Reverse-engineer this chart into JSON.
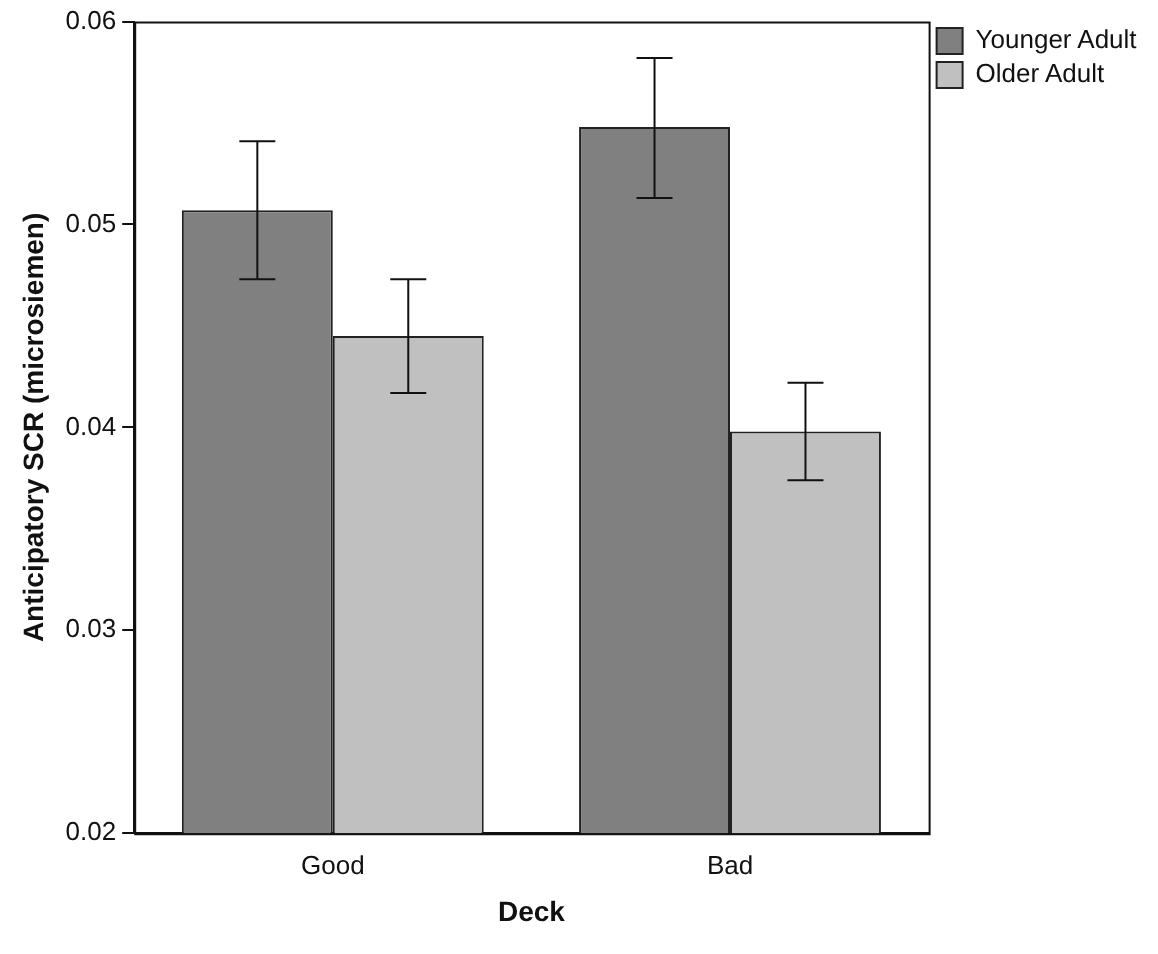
{
  "chart_data": {
    "type": "bar",
    "xlabel": "Deck",
    "ylabel": "Anticipatory SCR (microsiemen)",
    "categories": [
      "Good",
      "Bad"
    ],
    "series": [
      {
        "name": "Younger Adult",
        "color": "#808080",
        "values": [
          0.0507,
          0.0548
        ],
        "errors": [
          [
            0.0473,
            0.0541
          ],
          [
            0.0513,
            0.0582
          ]
        ]
      },
      {
        "name": "Older Adult",
        "color": "#c0c0c0",
        "values": [
          0.0445,
          0.0398
        ],
        "errors": [
          [
            0.0417,
            0.0473
          ],
          [
            0.0374,
            0.0422
          ]
        ]
      }
    ],
    "ylim": [
      0.02,
      0.06
    ],
    "yticks": [
      0.02,
      0.03,
      0.04,
      0.05,
      0.06
    ],
    "legend": "right",
    "grid": false
  }
}
